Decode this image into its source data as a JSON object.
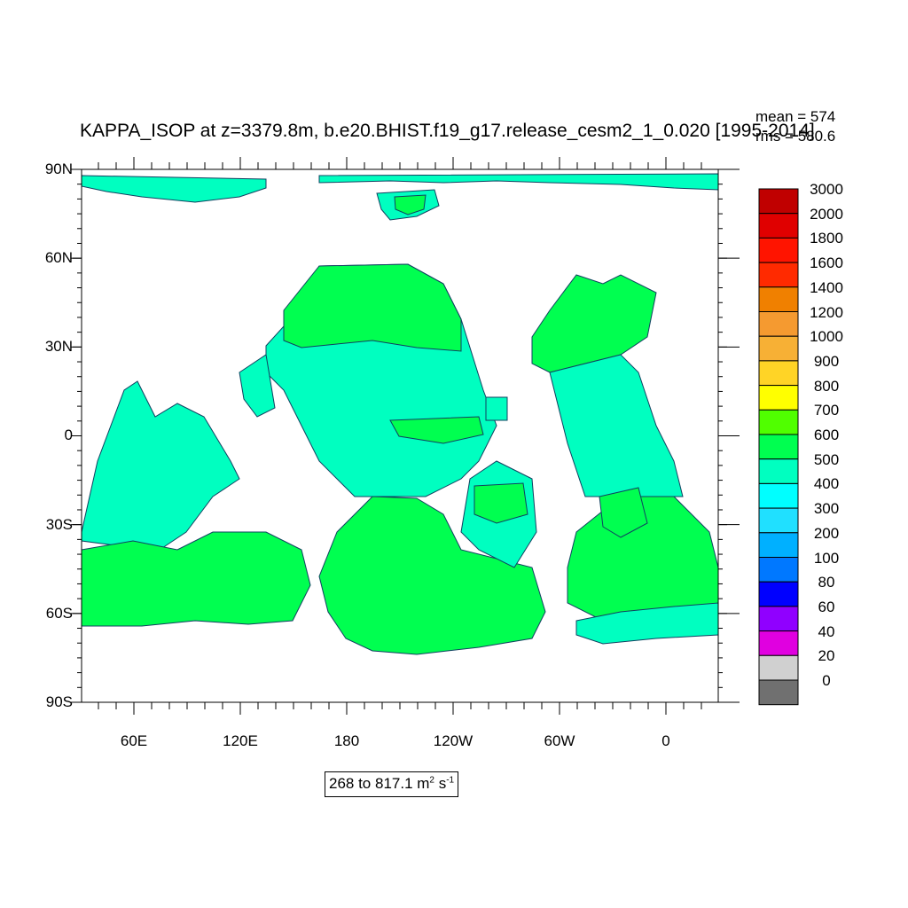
{
  "title": "KAPPA_ISOP at z=3379.8m, b.e20.BHIST.f19_g17.release_cesm2_1_0.020 [1995-2014]",
  "stats": {
    "mean": "mean = 574",
    "rms": "rms = 580.6"
  },
  "range": {
    "text": "268 to 817.1 m",
    "unit_sup1": "2",
    "unit_mid": " s",
    "unit_sup2": "-1"
  },
  "axes": {
    "lat_labels": [
      "90N",
      "60N",
      "30N",
      "0",
      "30S",
      "60S",
      "90S"
    ],
    "lon_labels": [
      "60E",
      "120E",
      "180",
      "120W",
      "60W",
      "0"
    ]
  },
  "colorbar": {
    "levels": [
      "3000",
      "2000",
      "1800",
      "1600",
      "1400",
      "1200",
      "1000",
      "900",
      "800",
      "700",
      "600",
      "500",
      "400",
      "300",
      "200",
      "100",
      "80",
      "60",
      "40",
      "20",
      "0"
    ],
    "colors": [
      "#c00000",
      "#e00000",
      "#ff1400",
      "#ff2a00",
      "#f08000",
      "#f59a30",
      "#f7b035",
      "#ffd426",
      "#ffff00",
      "#50ff00",
      "#00ff50",
      "#00ffc0",
      "#00ffff",
      "#20e0ff",
      "#00b0ff",
      "#0078ff",
      "#0000ff",
      "#9000ff",
      "#e000e0",
      "#d0d0d0",
      "#707070"
    ]
  },
  "map_colors": {
    "band_600_700": "#00ff50",
    "band_500_600": "#00ffc0",
    "band_400_500": "#00ffff",
    "band_300_400": "#20e0ff",
    "coast": "#104060"
  }
}
